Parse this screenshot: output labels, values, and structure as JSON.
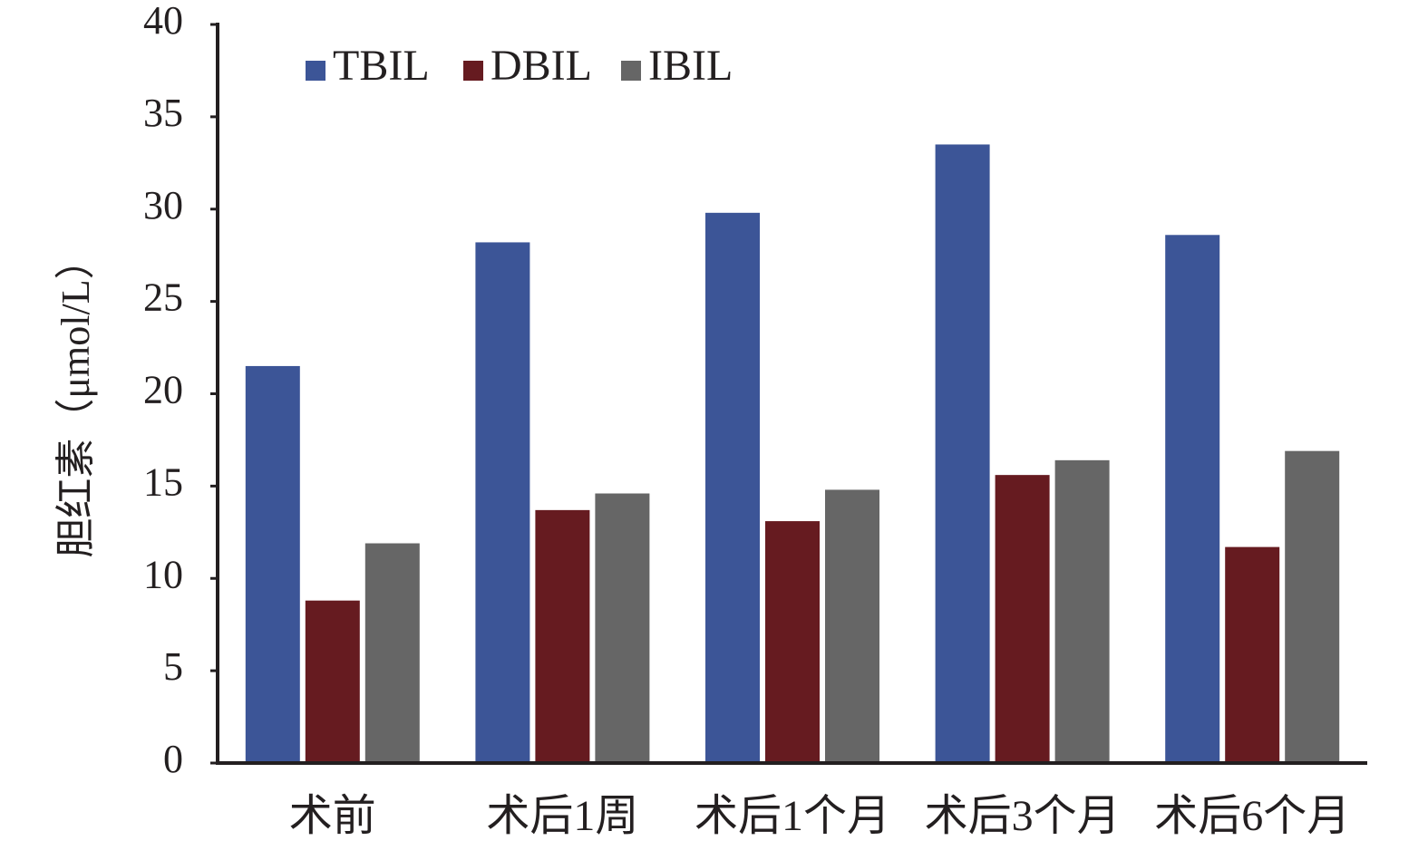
{
  "chart_data": {
    "type": "bar",
    "y_label": "胆红素（μmol/L）",
    "categories": [
      "术前",
      "术后1周",
      "术后1个月",
      "术后3个月",
      "术后6个月"
    ],
    "series": [
      {
        "name": "TBIL",
        "color": "#3c5597",
        "values": [
          21.5,
          28.2,
          29.8,
          33.5,
          28.6
        ]
      },
      {
        "name": "DBIL",
        "color": "#661b20",
        "values": [
          8.8,
          13.7,
          13.1,
          15.6,
          11.7
        ]
      },
      {
        "name": "IBIL",
        "color": "#666666",
        "values": [
          11.9,
          14.6,
          14.8,
          16.4,
          16.9
        ]
      }
    ],
    "ylim": [
      0,
      40
    ],
    "yticks": [
      0,
      5,
      10,
      15,
      20,
      25,
      30,
      35,
      40
    ],
    "grid": false,
    "legend": "top-left"
  }
}
